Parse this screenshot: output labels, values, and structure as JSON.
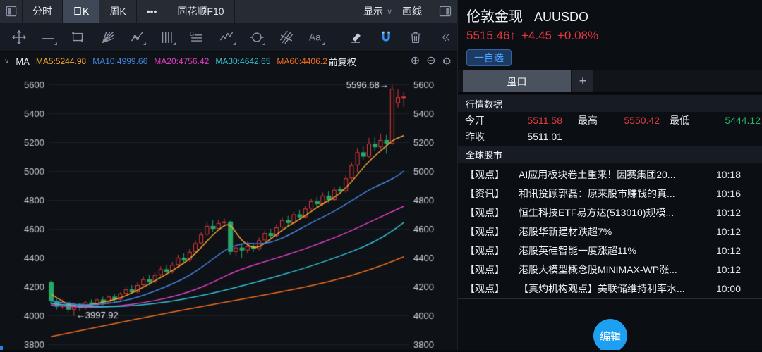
{
  "toolbar": {
    "tabs": [
      "分时",
      "日K",
      "周K",
      "•••",
      "同花顺F10"
    ],
    "active_tab": "日K",
    "display_label": "显示",
    "display_caret": "∨",
    "draw_label": "画线",
    "tools": [
      "move",
      "trendline",
      "rectangle",
      "gann-fan",
      "polyline",
      "vertical-lines",
      "golden-lines",
      "wave",
      "cycle",
      "rays",
      "text",
      "marker",
      "magnet",
      "trash",
      "collapse-left"
    ]
  },
  "ma_bar": {
    "caret": "∨",
    "indicator": "MA",
    "adjust_label": "前复权",
    "zoom_in": "⊕",
    "zoom_out": "⊖",
    "settings": "⚙"
  },
  "quote_header": {
    "name": "伦敦金现",
    "code": "AUUSDO",
    "price": "5515.46",
    "arrow": "↑",
    "change": "+4.45",
    "change_pct": "+0.08%",
    "watch_button": "一自选"
  },
  "panel": {
    "tab": "盘口",
    "add_tab": "+",
    "sections": {
      "market_data": "行情数据",
      "global_markets": "全球股市"
    },
    "quote": {
      "open_label": "今开",
      "open": "5511.58",
      "high_label": "最高",
      "high": "5550.42",
      "low_label": "最低",
      "low": "5444.12",
      "prev_close_label": "昨收",
      "prev_close": "5511.01"
    },
    "news": [
      {
        "tag": "【观点】",
        "title": "AI应用板块卷土重来！因赛集团20...",
        "time": "10:18"
      },
      {
        "tag": "【资讯】",
        "title": "和讯投顾郭磊：原来股市赚钱的真...",
        "time": "10:16"
      },
      {
        "tag": "【观点】",
        "title": "恒生科技ETF易方达(513010)规模...",
        "time": "10:12"
      },
      {
        "tag": "【观点】",
        "title": "港股华新建材跌超7%",
        "time": "10:12"
      },
      {
        "tag": "【观点】",
        "title": "港股英硅智能一度涨超11%",
        "time": "10:12"
      },
      {
        "tag": "【观点】",
        "title": "港股大模型概念股MINIMAX-WP涨...",
        "time": "10:12"
      },
      {
        "tag": "【观点】",
        "title": "【真灼机构观点】美联储维持利率水...",
        "time": "10:00"
      }
    ],
    "edit_button": "编辑"
  },
  "colors": {
    "up_red": "#e23b3c",
    "down_green": "#27a768",
    "accent_blue": "#1ea0f2",
    "magnet_blue": "#2e8ef0",
    "watch_blue": "#4aa3ff"
  },
  "chart_data": {
    "type": "candlestick",
    "symbol": "AUUSDO",
    "period": "日K",
    "y_ticks": [
      5600,
      5400,
      5200,
      5000,
      4800,
      4600,
      4400,
      4200,
      4000,
      3800
    ],
    "grid_color": "#1b212b",
    "up_color": "#e23b3c",
    "down_color": "#27a768",
    "bg_color": "#0e1116",
    "candles": [
      [
        4230,
        4100,
        4240,
        4080
      ],
      [
        4100,
        4060,
        4120,
        4040
      ],
      [
        4060,
        4090,
        4110,
        4045
      ],
      [
        4090,
        4040,
        4095,
        4020
      ],
      [
        4040,
        4080,
        4090,
        3997.92
      ],
      [
        4080,
        4050,
        4085,
        4030
      ],
      [
        4050,
        4090,
        4100,
        4040
      ],
      [
        4090,
        4070,
        4110,
        4050
      ],
      [
        4070,
        4110,
        4120,
        4060
      ],
      [
        4110,
        4090,
        4130,
        4070
      ],
      [
        4090,
        4130,
        4140,
        4080
      ],
      [
        4130,
        4110,
        4150,
        4090
      ],
      [
        4110,
        4150,
        4160,
        4100
      ],
      [
        4150,
        4180,
        4200,
        4140
      ],
      [
        4180,
        4160,
        4210,
        4150
      ],
      [
        4160,
        4210,
        4230,
        4150
      ],
      [
        4210,
        4250,
        4270,
        4200
      ],
      [
        4250,
        4230,
        4280,
        4210
      ],
      [
        4230,
        4280,
        4300,
        4220
      ],
      [
        4280,
        4320,
        4340,
        4260
      ],
      [
        4320,
        4300,
        4350,
        4280
      ],
      [
        4300,
        4350,
        4370,
        4290
      ],
      [
        4350,
        4400,
        4420,
        4340
      ],
      [
        4400,
        4380,
        4430,
        4360
      ],
      [
        4380,
        4440,
        4460,
        4370
      ],
      [
        4440,
        4500,
        4520,
        4430
      ],
      [
        4500,
        4560,
        4580,
        4490
      ],
      [
        4560,
        4620,
        4650,
        4550
      ],
      [
        4620,
        4600,
        4660,
        4580
      ],
      [
        4600,
        4640,
        4665,
        4590
      ],
      [
        4640,
        4650,
        4670,
        4620
      ],
      [
        4650,
        4440,
        4655,
        4420
      ],
      [
        4440,
        4470,
        4490,
        4410
      ],
      [
        4470,
        4450,
        4500,
        4400
      ],
      [
        4450,
        4480,
        4510,
        4430
      ],
      [
        4480,
        4460,
        4500,
        4440
      ],
      [
        4460,
        4520,
        4540,
        4450
      ],
      [
        4520,
        4570,
        4590,
        4510
      ],
      [
        4570,
        4550,
        4600,
        4530
      ],
      [
        4550,
        4610,
        4630,
        4540
      ],
      [
        4610,
        4660,
        4680,
        4600
      ],
      [
        4660,
        4640,
        4690,
        4620
      ],
      [
        4640,
        4700,
        4720,
        4630
      ],
      [
        4700,
        4680,
        4730,
        4660
      ],
      [
        4680,
        4740,
        4760,
        4670
      ],
      [
        4740,
        4790,
        4810,
        4730
      ],
      [
        4790,
        4770,
        4820,
        4750
      ],
      [
        4770,
        4830,
        4850,
        4760
      ],
      [
        4830,
        4800,
        4860,
        4780
      ],
      [
        4800,
        4870,
        4890,
        4790
      ],
      [
        4875,
        4860,
        4895,
        4840
      ],
      [
        4860,
        4950,
        4970,
        4850
      ],
      [
        4950,
        5040,
        5060,
        4940
      ],
      [
        5040,
        5130,
        5160,
        4990
      ],
      [
        5130,
        5100,
        5170,
        5080
      ],
      [
        5100,
        5190,
        5230,
        5090
      ],
      [
        5190,
        5165,
        5235,
        5140
      ],
      [
        5165,
        5215,
        5260,
        5150
      ],
      [
        5215,
        5190,
        5250,
        5120
      ],
      [
        5190,
        5570,
        5596.68,
        5180
      ],
      [
        5470,
        5511.01,
        5565,
        5440
      ],
      [
        5511.58,
        5515.46,
        5550.42,
        5444.12
      ]
    ],
    "annotations": [
      {
        "text": "5596.68→",
        "index": 59,
        "value": 5596.68,
        "align": "right"
      },
      {
        "text": "←3997.92",
        "index": 4,
        "value": 3997.92,
        "align": "left"
      }
    ],
    "ma_lines": [
      {
        "name": "MA5",
        "legend": "MA5:5244.98",
        "color": "#f5a732",
        "points": [
          [
            0,
            4150
          ],
          [
            2,
            4095
          ],
          [
            4,
            4062
          ],
          [
            6,
            4066
          ],
          [
            8,
            4082
          ],
          [
            10,
            4100
          ],
          [
            12,
            4120
          ],
          [
            14,
            4155
          ],
          [
            16,
            4195
          ],
          [
            18,
            4240
          ],
          [
            20,
            4285
          ],
          [
            22,
            4335
          ],
          [
            24,
            4390
          ],
          [
            26,
            4470
          ],
          [
            28,
            4560
          ],
          [
            30,
            4625
          ],
          [
            31,
            4630
          ],
          [
            32,
            4575
          ],
          [
            33,
            4520
          ],
          [
            34,
            4488
          ],
          [
            35,
            4470
          ],
          [
            36,
            4475
          ],
          [
            37,
            4500
          ],
          [
            39,
            4560
          ],
          [
            41,
            4620
          ],
          [
            43,
            4665
          ],
          [
            45,
            4720
          ],
          [
            47,
            4775
          ],
          [
            49,
            4815
          ],
          [
            51,
            4880
          ],
          [
            53,
            4975
          ],
          [
            55,
            5070
          ],
          [
            57,
            5140
          ],
          [
            59,
            5210
          ],
          [
            60,
            5230
          ],
          [
            61,
            5245
          ]
        ]
      },
      {
        "name": "MA10",
        "legend": "MA10:4999.66",
        "color": "#4186e0",
        "points": [
          [
            0,
            4100
          ],
          [
            3,
            4080
          ],
          [
            6,
            4072
          ],
          [
            9,
            4078
          ],
          [
            12,
            4095
          ],
          [
            15,
            4125
          ],
          [
            18,
            4168
          ],
          [
            21,
            4218
          ],
          [
            24,
            4275
          ],
          [
            27,
            4360
          ],
          [
            30,
            4450
          ],
          [
            32,
            4488
          ],
          [
            34,
            4500
          ],
          [
            36,
            4495
          ],
          [
            38,
            4505
          ],
          [
            40,
            4535
          ],
          [
            42,
            4575
          ],
          [
            44,
            4620
          ],
          [
            46,
            4662
          ],
          [
            48,
            4700
          ],
          [
            50,
            4745
          ],
          [
            52,
            4795
          ],
          [
            54,
            4845
          ],
          [
            56,
            4890
          ],
          [
            58,
            4925
          ],
          [
            60,
            4968
          ],
          [
            61,
            5000
          ]
        ]
      },
      {
        "name": "MA20",
        "legend": "MA20:4756.42",
        "color": "#e13fc2",
        "points": [
          [
            0,
            4072
          ],
          [
            4,
            4058
          ],
          [
            8,
            4056
          ],
          [
            12,
            4066
          ],
          [
            16,
            4088
          ],
          [
            20,
            4118
          ],
          [
            24,
            4162
          ],
          [
            28,
            4228
          ],
          [
            31,
            4290
          ],
          [
            34,
            4335
          ],
          [
            37,
            4372
          ],
          [
            40,
            4410
          ],
          [
            43,
            4448
          ],
          [
            46,
            4492
          ],
          [
            49,
            4538
          ],
          [
            52,
            4588
          ],
          [
            55,
            4645
          ],
          [
            58,
            4700
          ],
          [
            61,
            4756
          ]
        ]
      },
      {
        "name": "MA30",
        "legend": "MA30:4642.65",
        "color": "#31c2d4",
        "points": [
          [
            0,
            4082
          ],
          [
            5,
            4064
          ],
          [
            10,
            4058
          ],
          [
            15,
            4068
          ],
          [
            20,
            4092
          ],
          [
            25,
            4128
          ],
          [
            30,
            4172
          ],
          [
            34,
            4215
          ],
          [
            38,
            4258
          ],
          [
            42,
            4305
          ],
          [
            46,
            4355
          ],
          [
            50,
            4412
          ],
          [
            54,
            4472
          ],
          [
            58,
            4555
          ],
          [
            61,
            4643
          ]
        ]
      },
      {
        "name": "MA60",
        "legend": "MA60:4406.2",
        "color": "#ef6c1f",
        "points": [
          [
            0,
            3852
          ],
          [
            6,
            3902
          ],
          [
            12,
            3952
          ],
          [
            18,
            4000
          ],
          [
            24,
            4046
          ],
          [
            30,
            4090
          ],
          [
            36,
            4134
          ],
          [
            42,
            4180
          ],
          [
            48,
            4232
          ],
          [
            54,
            4300
          ],
          [
            58,
            4358
          ],
          [
            61,
            4406
          ]
        ]
      }
    ]
  }
}
